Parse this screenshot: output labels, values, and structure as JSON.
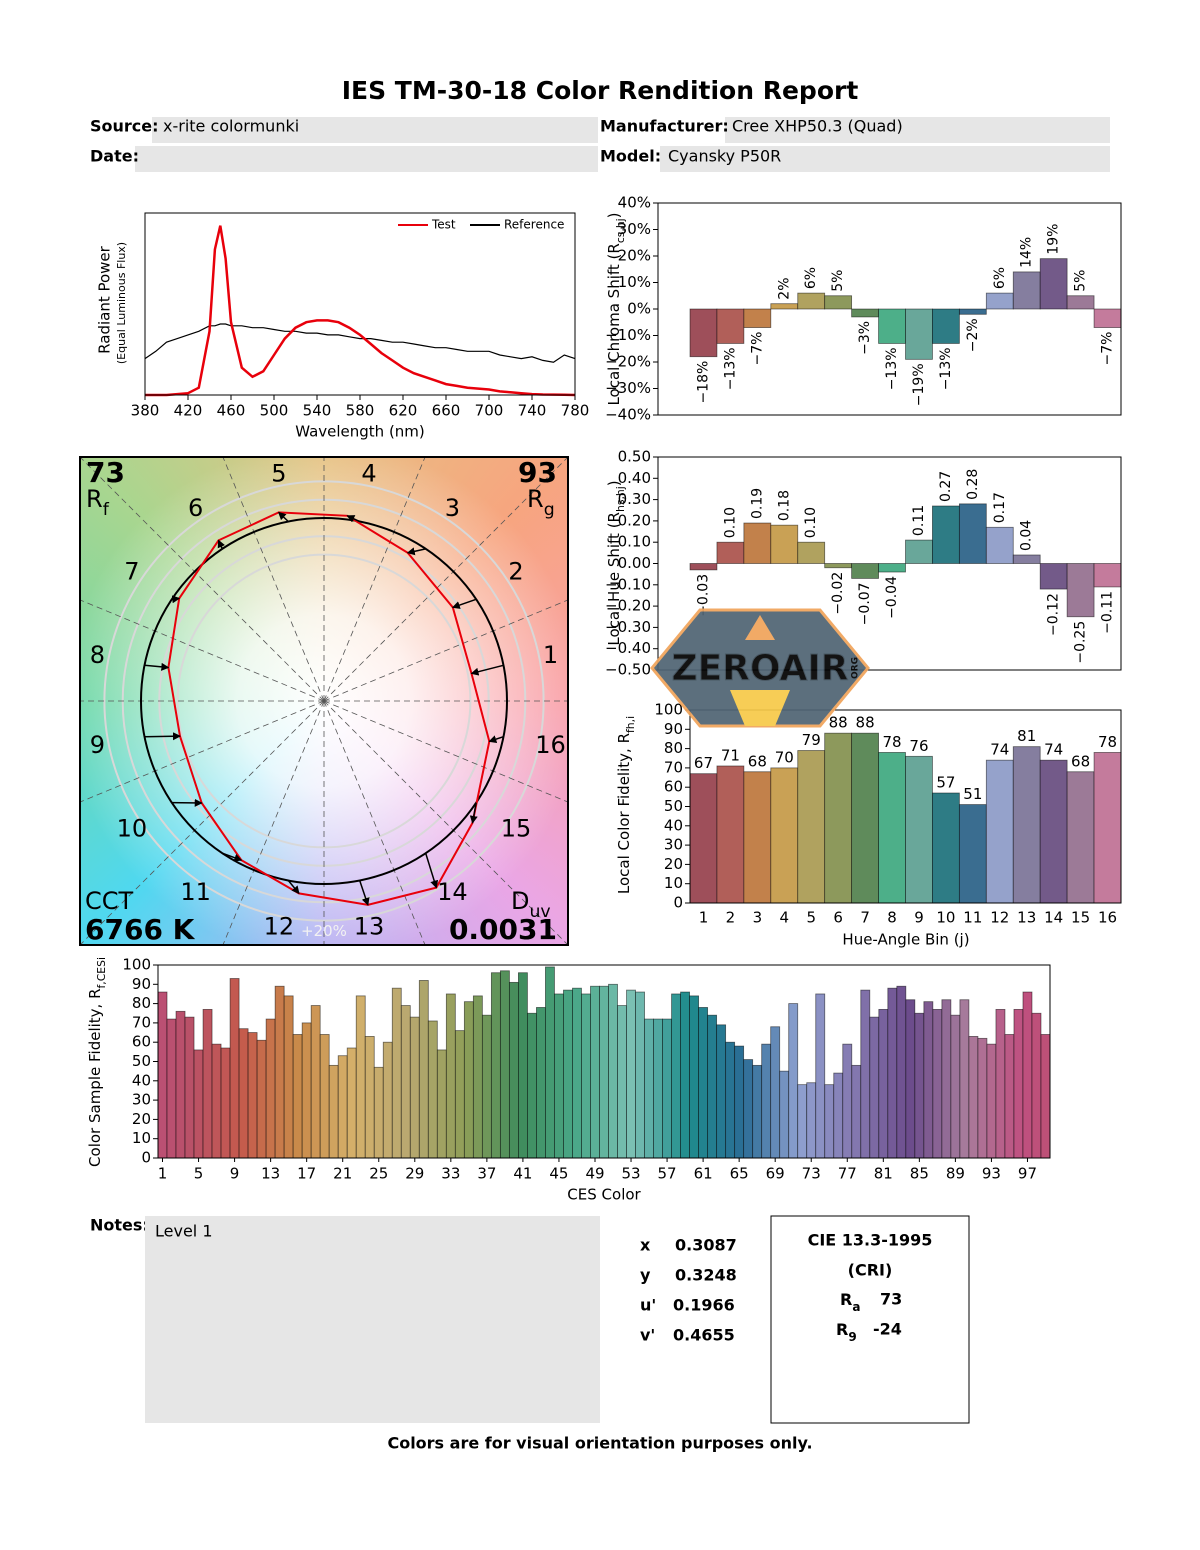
{
  "title": "IES TM-30-18 Color Rendition Report",
  "fields": [
    {
      "label": "Source:",
      "value": "x-rite colormunki"
    },
    {
      "label": "Manufacturer:",
      "value": "Cree XHP50.3 (Quad)"
    },
    {
      "label": "Date:"
    },
    {
      "label": "Model:",
      "value": "Cyansky P50R"
    }
  ],
  "chart_data": [
    {
      "type": "line",
      "legend": "upper right",
      "xlabel": "Wavelength (nm)",
      "ylabel": "Radiant Power",
      "ylabel2": "(Equal Luminous Flux)",
      "x": [
        380,
        390,
        400,
        410,
        420,
        430,
        440,
        445,
        450,
        455,
        460,
        470,
        480,
        490,
        500,
        510,
        520,
        530,
        540,
        550,
        560,
        570,
        580,
        590,
        600,
        610,
        620,
        630,
        640,
        650,
        660,
        670,
        680,
        690,
        700,
        710,
        720,
        730,
        740,
        750,
        760,
        770,
        780
      ],
      "series": [
        {
          "name": "Test",
          "color": "#e8000b",
          "values": [
            0,
            0,
            0,
            0.005,
            0.01,
            0.04,
            0.35,
            0.8,
            0.93,
            0.75,
            0.4,
            0.15,
            0.1,
            0.13,
            0.22,
            0.31,
            0.37,
            0.4,
            0.41,
            0.41,
            0.4,
            0.37,
            0.33,
            0.28,
            0.23,
            0.19,
            0.15,
            0.12,
            0.1,
            0.08,
            0.06,
            0.05,
            0.04,
            0.035,
            0.03,
            0.02,
            0.015,
            0.01,
            0.005,
            0.003,
            0.002,
            0.001,
            0
          ]
        },
        {
          "name": "Reference",
          "color": "#000000",
          "values": [
            0.2,
            0.24,
            0.29,
            0.31,
            0.33,
            0.35,
            0.38,
            0.38,
            0.39,
            0.39,
            0.38,
            0.38,
            0.37,
            0.37,
            0.36,
            0.35,
            0.35,
            0.34,
            0.34,
            0.33,
            0.33,
            0.32,
            0.31,
            0.31,
            0.3,
            0.29,
            0.29,
            0.28,
            0.27,
            0.26,
            0.26,
            0.25,
            0.24,
            0.24,
            0.24,
            0.22,
            0.21,
            0.2,
            0.21,
            0.19,
            0.18,
            0.22,
            0.2
          ]
        }
      ],
      "xlim": [
        380,
        780
      ],
      "xticks": [
        380,
        420,
        460,
        500,
        540,
        580,
        620,
        660,
        700,
        740,
        780
      ],
      "ylim": [
        0,
        1
      ]
    },
    {
      "type": "bar",
      "ylabel": {
        "text": "Local Chroma Shift (R",
        "sub": "cs,hj",
        "after": ")"
      },
      "values": [
        -18,
        -13,
        -7,
        2,
        6,
        5,
        -3,
        -13,
        -19,
        -13,
        -2,
        6,
        14,
        19,
        5,
        -7
      ],
      "value_labels": [
        "−18%",
        "−13%",
        "−7%",
        "2%",
        "6%",
        "5%",
        "−3%",
        "−13%",
        "−19%",
        "−13%",
        "−2%",
        "6%",
        "14%",
        "19%",
        "5%",
        "−7%"
      ],
      "ylim": [
        -40,
        40
      ],
      "yticks": [
        {
          "value": 40,
          "label": "40%"
        },
        {
          "value": 30,
          "label": "30%"
        },
        {
          "value": 20,
          "label": "20%"
        },
        {
          "value": 10,
          "label": "10%"
        },
        {
          "value": 0,
          "label": "0%"
        },
        {
          "value": -10,
          "label": "−10%"
        },
        {
          "value": -20,
          "label": "−20%"
        },
        {
          "value": -30,
          "label": "−30%"
        },
        {
          "value": -40,
          "label": "−40%"
        }
      ],
      "colors": [
        "#9e4f5a",
        "#b15f59",
        "#c2814b",
        "#c9a155",
        "#b0a25f",
        "#8d995c",
        "#5f8b5b",
        "#4daf89",
        "#69a79a",
        "#2e7c85",
        "#3a6d90",
        "#95a2cb",
        "#857e9f",
        "#735a89",
        "#9c7a97",
        "#c47b9c"
      ]
    },
    {
      "type": "bar",
      "ylabel": {
        "text": "Local Hue Shift (R",
        "sub": "hs,hj",
        "after": ")"
      },
      "values": [
        -0.03,
        0.1,
        0.19,
        0.18,
        0.1,
        -0.02,
        -0.07,
        -0.04,
        0.11,
        0.27,
        0.28,
        0.17,
        0.04,
        -0.12,
        -0.25,
        -0.11
      ],
      "value_labels": [
        "−0.03",
        "0.10",
        "0.19",
        "0.18",
        "0.10",
        "−0.02",
        "−0.07",
        "−0.04",
        "0.11",
        "0.27",
        "0.28",
        "0.17",
        "0.04",
        "−0.12",
        "−0.25",
        "−0.11"
      ],
      "ylim": [
        -0.5,
        0.5
      ],
      "yticks": [
        {
          "value": 0.5,
          "label": "0.50"
        },
        {
          "value": 0.4,
          "label": "0.40"
        },
        {
          "value": 0.3,
          "label": "0.30"
        },
        {
          "value": 0.2,
          "label": "0.20"
        },
        {
          "value": 0.1,
          "label": "0.10"
        },
        {
          "value": 0,
          "label": "0.00"
        },
        {
          "value": -0.1,
          "label": "−0.10"
        },
        {
          "value": -0.2,
          "label": "−0.20"
        },
        {
          "value": -0.3,
          "label": "−0.30"
        },
        {
          "value": -0.4,
          "label": "−0.40"
        },
        {
          "value": -0.5,
          "label": "−0.50"
        }
      ],
      "colors": [
        "#9e4f5a",
        "#b15f59",
        "#c2814b",
        "#c9a155",
        "#b0a25f",
        "#8d995c",
        "#5f8b5b",
        "#4daf89",
        "#69a79a",
        "#2e7c85",
        "#3a6d90",
        "#95a2cb",
        "#857e9f",
        "#735a89",
        "#9c7a97",
        "#c47b9c"
      ]
    },
    {
      "type": "bar",
      "ylabel": {
        "text": "Local Color Fidelity, R",
        "sub": "fh,i"
      },
      "xlabel": "Hue-Angle Bin (j)",
      "data_labels": true,
      "categories": [
        "1",
        "2",
        "3",
        "4",
        "5",
        "6",
        "7",
        "8",
        "9",
        "10",
        "11",
        "12",
        "13",
        "14",
        "15",
        "16"
      ],
      "values": [
        67,
        71,
        68,
        70,
        79,
        88,
        88,
        78,
        76,
        57,
        51,
        74,
        81,
        74,
        68,
        78
      ],
      "ylim": [
        0,
        100
      ],
      "yticks": [
        0,
        10,
        20,
        30,
        40,
        50,
        60,
        70,
        80,
        90,
        100
      ],
      "colors": [
        "#9e4f5a",
        "#b15f59",
        "#c2814b",
        "#c9a155",
        "#b0a25f",
        "#8d995c",
        "#5f8b5b",
        "#4daf89",
        "#69a79a",
        "#2e7c85",
        "#3a6d90",
        "#95a2cb",
        "#857e9f",
        "#735a89",
        "#9c7a97",
        "#c47b9c"
      ]
    },
    {
      "type": "bar",
      "ylabel": {
        "text": "Color Sample Fidelity, R",
        "sub": "f,CESi"
      },
      "xlabel": "CES Color",
      "values": [
        86,
        72,
        76,
        73,
        56,
        77,
        59,
        57,
        93,
        67,
        65,
        61,
        72,
        89,
        84,
        64,
        70,
        79,
        64,
        48,
        53,
        57,
        84,
        63,
        47,
        60,
        88,
        79,
        73,
        92,
        71,
        56,
        85,
        66,
        81,
        84,
        74,
        96,
        97,
        91,
        96,
        75,
        78,
        99,
        85,
        87,
        88,
        85,
        89,
        89,
        90,
        79,
        87,
        86,
        72,
        72,
        72,
        85,
        86,
        84,
        78,
        74,
        69,
        60,
        58,
        51,
        48,
        59,
        68,
        45,
        80,
        38,
        39,
        85,
        38,
        44,
        59,
        48,
        87,
        73,
        77,
        88,
        89,
        82,
        75,
        81,
        77,
        82,
        74,
        82,
        63,
        62,
        59,
        77,
        64,
        77,
        86,
        75,
        64
      ],
      "xticks": [
        1,
        5,
        9,
        13,
        17,
        21,
        25,
        29,
        33,
        37,
        41,
        45,
        49,
        53,
        57,
        61,
        65,
        69,
        73,
        77,
        81,
        85,
        89,
        93,
        97
      ],
      "ylim": [
        0,
        100
      ],
      "yticks": [
        0,
        10,
        20,
        30,
        40,
        50,
        60,
        70,
        80,
        90,
        100
      ],
      "palette": [
        "#b8506a",
        "#c55a4c",
        "#c98a4a",
        "#d4b06a",
        "#b8a870",
        "#8f9e58",
        "#3f8c5c",
        "#4aa888",
        "#7cc0b4",
        "#1f8c8c",
        "#2b6d96",
        "#8fa0d0",
        "#8478b0",
        "#6c4c8c",
        "#a87c9c",
        "#c05080"
      ]
    },
    {
      "type": "vector",
      "categories": [
        "1",
        "2",
        "3",
        "4",
        "5",
        "6",
        "7",
        "8",
        "9",
        "10",
        "11",
        "12",
        "13",
        "14",
        "15",
        "16"
      ],
      "rf": {
        "value": 73,
        "label": {
          "text": "R",
          "sub": "f"
        }
      },
      "rg": {
        "value": 93,
        "label": {
          "text": "R",
          "sub": "g"
        }
      },
      "cct": {
        "label": "CCT",
        "value": "6766 K"
      },
      "duv": {
        "value": 0.0031,
        "label": {
          "text": "D",
          "sub": "uv"
        }
      },
      "ring_label": "+20%",
      "test_color": "#e8000b",
      "reference_color": "#000000"
    }
  ],
  "notes": {
    "label": "Notes:",
    "text": "Level 1"
  },
  "chromaticity": [
    {
      "label": "x",
      "value": 0.3087
    },
    {
      "label": "y",
      "value": 0.3248
    },
    {
      "label": "u'",
      "value": 0.1966
    },
    {
      "label": "v'",
      "value": 0.4655
    }
  ],
  "cri": {
    "title": "CIE 13.3-1995",
    "subtitle": "(CRI)",
    "items": [
      {
        "symbol": "R",
        "sub": "a",
        "value": 73
      },
      {
        "symbol": "R",
        "sub": "9",
        "value": -24
      }
    ]
  },
  "footer": "Colors are for visual orientation purposes only.",
  "watermark": {
    "text": "ZEROAIR",
    "sub": "ORG"
  }
}
